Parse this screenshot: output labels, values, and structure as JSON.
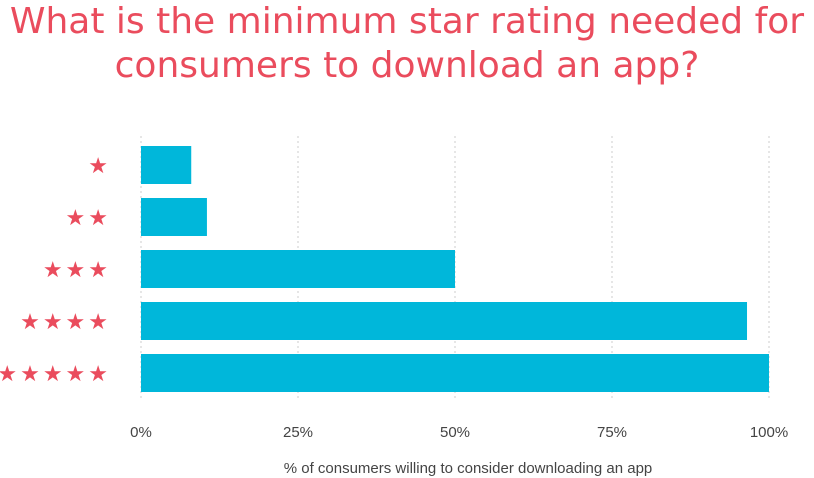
{
  "title_lines": [
    "What is the minimum star rating needed for",
    "consumers to download an app?"
  ],
  "colors": {
    "title": "#ea4c5d",
    "bar": "#00b7da",
    "star": "#ea4c5d",
    "grid": "#cccccc",
    "text": "#444444"
  },
  "chart_data": {
    "type": "bar",
    "orientation": "horizontal",
    "title": "What is the minimum star rating needed for consumers to download an app?",
    "categories": [
      "★",
      "★★",
      "★★★",
      "★★★★",
      "★★★★★"
    ],
    "values": [
      8,
      10.5,
      50,
      96.5,
      100
    ],
    "xlabel": "% of consumers willing to consider downloading an app",
    "ylabel": "",
    "xlim": [
      0,
      100
    ],
    "xticks": [
      "0%",
      "25%",
      "50%",
      "75%",
      "100%"
    ],
    "grid": "vertical dotted",
    "legend": "none"
  }
}
